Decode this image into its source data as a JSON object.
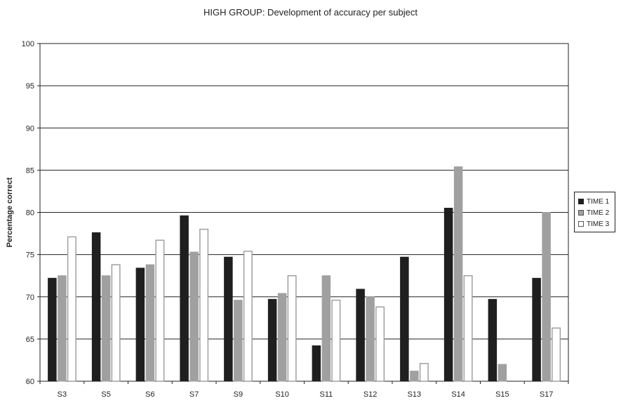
{
  "chart_data": {
    "type": "bar",
    "title": "HIGH GROUP: Development of accuracy per subject",
    "xlabel": "",
    "ylabel": "Percentage correct",
    "ylim": [
      60,
      100
    ],
    "yticks": [
      60,
      65,
      70,
      75,
      80,
      85,
      90,
      95,
      100
    ],
    "grid": true,
    "legend_position": "right",
    "categories": [
      "S3",
      "S5",
      "S6",
      "S7",
      "S9",
      "S10",
      "S11",
      "S12",
      "S13",
      "S14",
      "S15",
      "S17"
    ],
    "series": [
      {
        "name": "TIME 1",
        "color": "#1f1f1f",
        "stroke": "#1f1f1f",
        "values": [
          72.2,
          77.6,
          73.4,
          79.6,
          74.7,
          69.7,
          64.2,
          70.9,
          74.7,
          80.5,
          69.7,
          72.2
        ]
      },
      {
        "name": "TIME 2",
        "color": "#a0a0a0",
        "stroke": "#a0a0a0",
        "values": [
          72.5,
          72.5,
          73.8,
          75.3,
          69.6,
          70.4,
          72.5,
          70.0,
          61.2,
          85.4,
          62.0,
          80.0
        ]
      },
      {
        "name": "TIME 3",
        "color": "#ffffff",
        "stroke": "#a0a0a0",
        "values": [
          77.1,
          73.8,
          76.7,
          78.0,
          75.4,
          72.5,
          69.6,
          68.8,
          62.1,
          72.5,
          null,
          66.3
        ]
      }
    ]
  }
}
